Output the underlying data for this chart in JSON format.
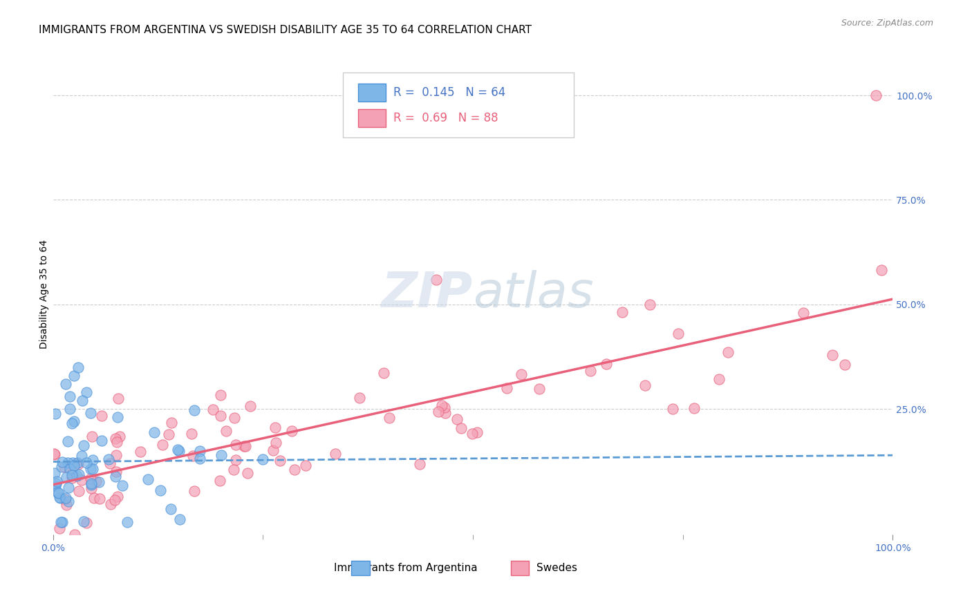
{
  "title": "IMMIGRANTS FROM ARGENTINA VS SWEDISH DISABILITY AGE 35 TO 64 CORRELATION CHART",
  "source": "Source: ZipAtlas.com",
  "xlabel": "",
  "ylabel": "Disability Age 35 to 64",
  "xlim": [
    0.0,
    1.0
  ],
  "ylim": [
    -0.05,
    1.1
  ],
  "x_tick_labels": [
    "0.0%",
    "100.0%"
  ],
  "x_tick_positions": [
    0.0,
    1.0
  ],
  "y_tick_labels": [
    "25.0%",
    "50.0%",
    "75.0%",
    "100.0%"
  ],
  "y_tick_positions": [
    0.25,
    0.5,
    0.75,
    1.0
  ],
  "argentina_R": 0.145,
  "argentina_N": 64,
  "swedes_R": 0.69,
  "swedes_N": 88,
  "argentina_color": "#7EB6E8",
  "argentina_edge_color": "#4A90D9",
  "swedes_color": "#F4A0B5",
  "swedes_edge_color": "#E8607A",
  "argentina_line_color": "#5B9BD5",
  "swedes_line_color": "#E8607A",
  "grid_color": "#CCCCCC",
  "background_color": "#FFFFFF",
  "title_fontsize": 11,
  "axis_label_fontsize": 10,
  "tick_label_fontsize": 10,
  "legend_fontsize": 11,
  "watermark_text": "ZIPatlas",
  "watermark_color_zip": "#C0C8E8",
  "watermark_color_atlas": "#B8C8D8"
}
